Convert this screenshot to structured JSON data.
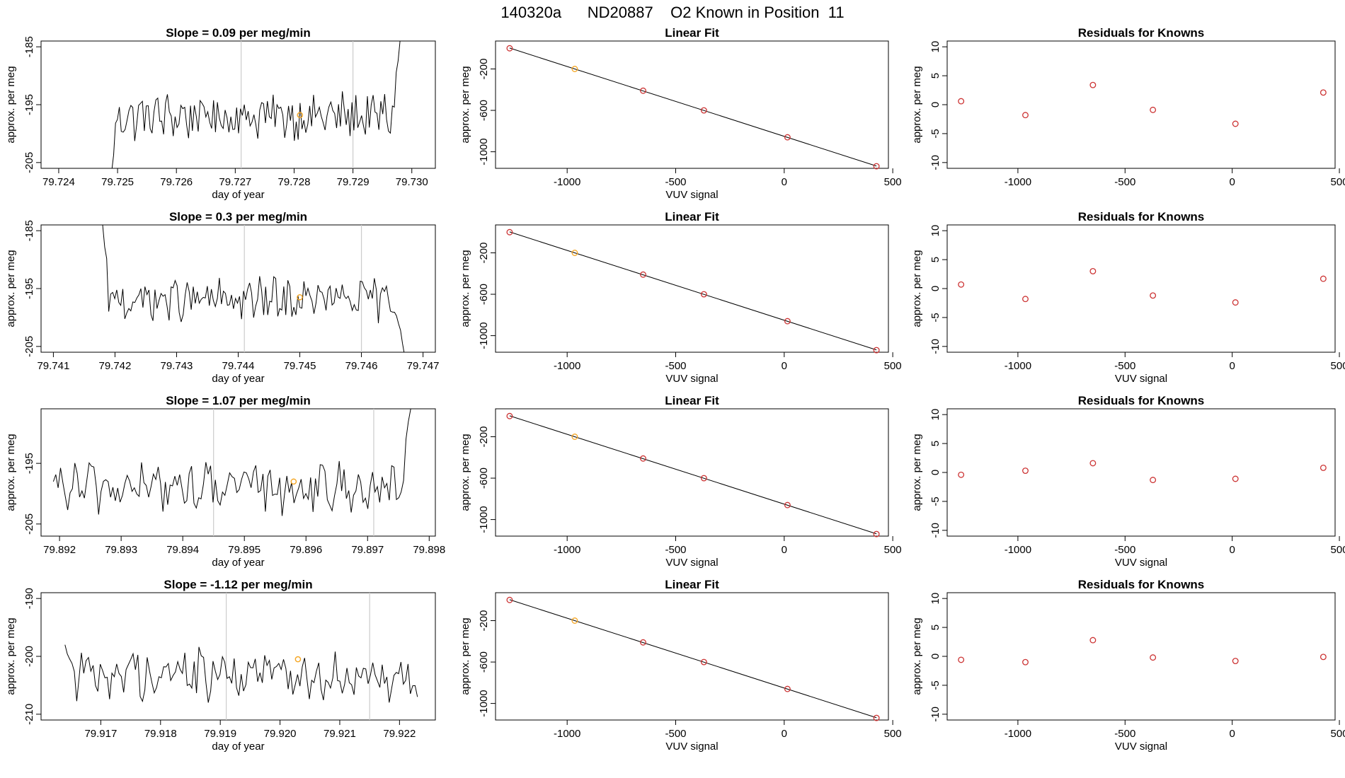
{
  "suptitle": "140320a      ND20887    O2 Known in Position  11",
  "chart_data": [
    {
      "type": "line",
      "title": "Slope =  0.09  per meg/min",
      "xlabel": "day of year",
      "ylabel": "approx. per meg",
      "xlim": [
        79.7237,
        79.7304
      ],
      "ylim": [
        -206,
        -184
      ],
      "xticks": [
        "79.724",
        "79.725",
        "79.726",
        "79.727",
        "79.728",
        "79.729",
        "79.730"
      ],
      "yticks": [
        "-185",
        "-195",
        "-205"
      ],
      "vlines": [
        79.7271,
        79.729
      ],
      "start": 79.7249,
      "end": 79.7298,
      "mean": -197,
      "amp": 3.5,
      "startv": -206.5,
      "endv": -184,
      "marker": {
        "x": 79.7281,
        "y": -196.8
      }
    },
    {
      "type": "scatter",
      "title": "Linear Fit",
      "xlabel": "VUV signal",
      "ylabel": "approx. per meg",
      "xlim": [
        -1330,
        480
      ],
      "ylim": [
        -1160,
        70
      ],
      "xticks": [
        "-1000",
        "-500",
        "0",
        "500"
      ],
      "yticks": [
        "-200",
        "-600",
        "-1000"
      ],
      "x": [
        -1265,
        -965,
        -650,
        -370,
        15,
        425
      ],
      "y": [
        0,
        -200,
        -410,
        -600,
        -860,
        -1140
      ],
      "highlight": 1
    },
    {
      "type": "scatter",
      "title": "Residuals for Knowns",
      "xlabel": "",
      "ylabel": "approx. per meg",
      "xlim": [
        -1330,
        480
      ],
      "ylim": [
        -11,
        11
      ],
      "xticks": [
        "-1000",
        "-500",
        "0",
        "500"
      ],
      "yticks": [
        "10",
        "5",
        "0",
        "-5",
        "-10"
      ],
      "x": [
        -1265,
        -965,
        -650,
        -370,
        15,
        425
      ],
      "y": [
        0.6,
        -1.8,
        3.4,
        -0.9,
        -3.3,
        2.1
      ]
    },
    {
      "type": "line",
      "title": "Slope =  0.3  per meg/min",
      "xlabel": "day of year",
      "ylabel": "approx. per meg",
      "xlim": [
        79.7408,
        79.7472
      ],
      "ylim": [
        -206,
        -184
      ],
      "xticks": [
        "79.741",
        "79.742",
        "79.743",
        "79.744",
        "79.745",
        "79.746",
        "79.747"
      ],
      "yticks": [
        "-185",
        "-195",
        "-205"
      ],
      "vlines": [
        79.7441,
        79.746
      ],
      "start": 79.7418,
      "end": 79.7467,
      "mean": -197,
      "amp": 3.2,
      "startv": -184,
      "endv": -206.5,
      "marker": {
        "x": 79.745,
        "y": -196.5
      }
    },
    {
      "type": "scatter",
      "title": "Linear Fit",
      "xlabel": "VUV signal",
      "ylabel": "approx. per meg",
      "xlim": [
        -1330,
        480
      ],
      "ylim": [
        -1160,
        70
      ],
      "xticks": [
        "-1000",
        "-500",
        "0",
        "500"
      ],
      "yticks": [
        "-200",
        "-600",
        "-1000"
      ],
      "x": [
        -1265,
        -965,
        -650,
        -370,
        15,
        425
      ],
      "y": [
        0,
        -200,
        -410,
        -600,
        -860,
        -1140
      ],
      "highlight": 1
    },
    {
      "type": "scatter",
      "title": "Residuals for Knowns",
      "xlabel": "VUV signal",
      "ylabel": "approx. per meg",
      "xlim": [
        -1330,
        480
      ],
      "ylim": [
        -11,
        11
      ],
      "xticks": [
        "-1000",
        "-500",
        "0",
        "500"
      ],
      "yticks": [
        "10",
        "5",
        "0",
        "-5",
        "-10"
      ],
      "x": [
        -1265,
        -965,
        -650,
        -370,
        15,
        425
      ],
      "y": [
        0.7,
        -1.8,
        3.0,
        -1.2,
        -2.4,
        1.7
      ]
    },
    {
      "type": "line",
      "title": "Slope =  1.07  per meg/min",
      "xlabel": "day of year",
      "ylabel": "approx. per meg",
      "xlim": [
        79.8917,
        79.8981
      ],
      "ylim": [
        -207,
        -186
      ],
      "xticks": [
        "79.892",
        "79.893",
        "79.894",
        "79.895",
        "79.896",
        "79.897",
        "79.898"
      ],
      "yticks": [
        "-195",
        "-205"
      ],
      "vlines": [
        79.8945,
        79.8971
      ],
      "start": 79.8919,
      "end": 79.8977,
      "mean": -199,
      "amp": 3.5,
      "startv": -198,
      "endv": -186,
      "marker": {
        "x": 79.8958,
        "y": -198
      }
    },
    {
      "type": "scatter",
      "title": "Linear Fit",
      "xlabel": "VUV signal",
      "ylabel": "approx. per meg",
      "xlim": [
        -1330,
        480
      ],
      "ylim": [
        -1160,
        70
      ],
      "xticks": [
        "-1000",
        "-500",
        "0",
        "500"
      ],
      "yticks": [
        "-200",
        "-600",
        "-1000"
      ],
      "x": [
        -1265,
        -965,
        -650,
        -370,
        15,
        425
      ],
      "y": [
        0,
        -200,
        -410,
        -600,
        -860,
        -1140
      ],
      "highlight": 1
    },
    {
      "type": "scatter",
      "title": "Residuals for Knowns",
      "xlabel": "VUV signal",
      "ylabel": "approx. per meg",
      "xlim": [
        -1330,
        480
      ],
      "ylim": [
        -11,
        11
      ],
      "xticks": [
        "-1000",
        "-500",
        "0",
        "500"
      ],
      "yticks": [
        "10",
        "5",
        "0",
        "-5",
        "-10"
      ],
      "x": [
        -1265,
        -965,
        -650,
        -370,
        15,
        425
      ],
      "y": [
        -0.4,
        0.3,
        1.6,
        -1.3,
        -1.1,
        0.8
      ]
    },
    {
      "type": "line",
      "title": "Slope =  -1.12  per meg/min",
      "xlabel": "day of year",
      "ylabel": "approx. per meg",
      "xlim": [
        79.916,
        79.9226
      ],
      "ylim": [
        -211,
        -189
      ],
      "xticks": [
        "79.917",
        "79.918",
        "79.919",
        "79.920",
        "79.921",
        "79.922"
      ],
      "yticks": [
        "-190",
        "-200",
        "-210"
      ],
      "vlines": [
        79.9191,
        79.9215
      ],
      "start": 79.9164,
      "end": 79.9223,
      "mean": -203,
      "amp": 3.8,
      "startv": -198,
      "endv": -207,
      "marker": {
        "x": 79.9203,
        "y": -200.5
      }
    },
    {
      "type": "scatter",
      "title": "Linear Fit",
      "xlabel": "VUV signal",
      "ylabel": "approx. per meg",
      "xlim": [
        -1330,
        480
      ],
      "ylim": [
        -1160,
        70
      ],
      "xticks": [
        "-1000",
        "-500",
        "0",
        "500"
      ],
      "yticks": [
        "-200",
        "-600",
        "-1000"
      ],
      "x": [
        -1265,
        -965,
        -650,
        -370,
        15,
        425
      ],
      "y": [
        0,
        -200,
        -410,
        -600,
        -860,
        -1140
      ],
      "highlight": 1
    },
    {
      "type": "scatter",
      "title": "Residuals for Knowns",
      "xlabel": "VUV signal",
      "ylabel": "approx. per meg",
      "xlim": [
        -1330,
        480
      ],
      "ylim": [
        -11,
        11
      ],
      "xticks": [
        "-1000",
        "-500",
        "0",
        "500"
      ],
      "yticks": [
        "10",
        "5",
        "0",
        "-5",
        "-10"
      ],
      "x": [
        -1265,
        -965,
        -650,
        -370,
        15,
        425
      ],
      "y": [
        -0.6,
        -1.0,
        2.8,
        -0.2,
        -0.8,
        -0.1
      ]
    }
  ]
}
